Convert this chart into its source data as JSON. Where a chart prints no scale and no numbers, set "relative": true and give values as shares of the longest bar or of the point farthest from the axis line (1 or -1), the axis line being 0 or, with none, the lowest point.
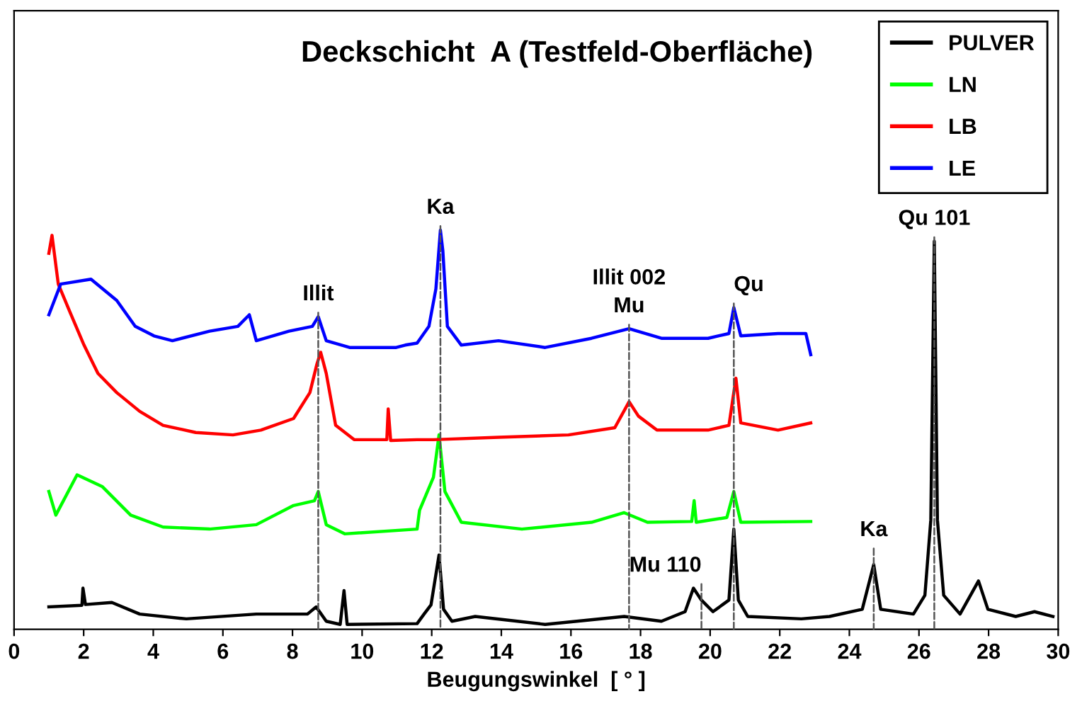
{
  "chart_data": {
    "type": "line",
    "title": "Deckschicht  A (Testfeld-Oberfläche)",
    "xlabel": "Beugungswinkel  [ ° ]",
    "relative": true,
    "xlim": [
      0,
      30
    ],
    "xticks": [
      0,
      2,
      4,
      6,
      8,
      10,
      12,
      14,
      16,
      18,
      20,
      22,
      24,
      26,
      28,
      30
    ],
    "legend": "top right",
    "grid": false,
    "marker": "none",
    "line_style": "solid",
    "series": [
      {
        "name": "PULVER",
        "color": "#000000",
        "x": [
          1.0,
          1.95,
          1.98,
          2.05,
          2.81,
          3.61,
          4.95,
          6.96,
          8.43,
          8.68,
          8.97,
          9.37,
          9.48,
          9.57,
          11.58,
          11.78,
          11.98,
          12.21,
          12.34,
          12.58,
          13.25,
          15.26,
          17.53,
          18.6,
          19.28,
          19.52,
          19.75,
          20.08,
          20.54,
          20.68,
          20.81,
          21.08,
          22.62,
          23.43,
          24.37,
          24.7,
          24.9,
          25.84,
          26.17,
          26.34,
          26.44,
          26.53,
          26.71,
          27.18,
          27.71,
          27.98,
          28.78,
          29.32,
          29.85
        ],
        "values": [
          0.056,
          0.06,
          0.103,
          0.062,
          0.067,
          0.038,
          0.026,
          0.038,
          0.038,
          0.056,
          0.02,
          0.012,
          0.097,
          0.012,
          0.014,
          0.038,
          0.061,
          0.186,
          0.05,
          0.02,
          0.032,
          0.012,
          0.032,
          0.02,
          0.044,
          0.103,
          0.073,
          0.044,
          0.073,
          0.251,
          0.073,
          0.032,
          0.026,
          0.032,
          0.05,
          0.162,
          0.05,
          0.038,
          0.085,
          0.274,
          0.972,
          0.274,
          0.085,
          0.038,
          0.121,
          0.05,
          0.032,
          0.044,
          0.032
        ]
      },
      {
        "name": "LN",
        "color": "#00ff00",
        "x": [
          1.0,
          1.2,
          1.81,
          2.54,
          3.35,
          4.28,
          5.62,
          6.96,
          8.03,
          8.63,
          8.74,
          8.97,
          9.5,
          11.58,
          11.65,
          12.05,
          12.21,
          12.38,
          12.85,
          14.59,
          16.59,
          17.53,
          18.2,
          19.47,
          19.54,
          19.6,
          20.48,
          20.68,
          20.88,
          22.89
        ],
        "values": [
          0.345,
          0.286,
          0.387,
          0.357,
          0.286,
          0.256,
          0.251,
          0.262,
          0.31,
          0.322,
          0.345,
          0.262,
          0.239,
          0.251,
          0.298,
          0.381,
          0.487,
          0.345,
          0.268,
          0.251,
          0.268,
          0.292,
          0.268,
          0.27,
          0.322,
          0.268,
          0.28,
          0.345,
          0.268,
          0.27
        ]
      },
      {
        "name": "LB",
        "color": "#ff0000",
        "x": [
          1.0,
          1.09,
          1.27,
          1.61,
          2.01,
          2.41,
          2.95,
          3.61,
          4.28,
          5.22,
          6.29,
          7.09,
          8.03,
          8.5,
          8.7,
          8.81,
          8.97,
          9.24,
          9.77,
          10.71,
          10.75,
          10.82,
          11.58,
          12.05,
          13.92,
          15.93,
          17.26,
          17.67,
          17.94,
          18.47,
          19.94,
          20.54,
          20.74,
          20.88,
          21.95,
          22.89
        ],
        "values": [
          0.942,
          0.987,
          0.865,
          0.794,
          0.712,
          0.641,
          0.593,
          0.546,
          0.511,
          0.493,
          0.487,
          0.499,
          0.528,
          0.593,
          0.664,
          0.694,
          0.641,
          0.511,
          0.475,
          0.475,
          0.552,
          0.473,
          0.475,
          0.475,
          0.481,
          0.487,
          0.505,
          0.57,
          0.534,
          0.499,
          0.499,
          0.511,
          0.629,
          0.517,
          0.499,
          0.517
        ]
      },
      {
        "name": "LE",
        "color": "#0000ff",
        "x": [
          1.0,
          1.34,
          2.21,
          2.95,
          3.48,
          4.02,
          4.55,
          5.62,
          6.43,
          6.76,
          6.96,
          7.9,
          8.57,
          8.74,
          8.97,
          9.64,
          10.98,
          11.24,
          11.58,
          11.92,
          12.12,
          12.25,
          12.32,
          12.45,
          12.85,
          13.92,
          15.26,
          16.59,
          17.39,
          17.67,
          18.6,
          19.94,
          20.54,
          20.68,
          20.88,
          21.95,
          22.75,
          22.89
        ],
        "values": [
          0.788,
          0.865,
          0.877,
          0.824,
          0.759,
          0.735,
          0.723,
          0.747,
          0.759,
          0.788,
          0.723,
          0.747,
          0.759,
          0.783,
          0.723,
          0.706,
          0.706,
          0.712,
          0.717,
          0.759,
          0.853,
          1,
          0.948,
          0.759,
          0.712,
          0.723,
          0.706,
          0.729,
          0.747,
          0.753,
          0.729,
          0.729,
          0.741,
          0.806,
          0.735,
          0.741,
          0.741,
          0.688
        ]
      }
    ],
    "annotations": [
      {
        "text": "Illit",
        "x": 8.74,
        "y": 0.783
      },
      {
        "text": "Ka",
        "x": 12.25,
        "y": 1
      },
      {
        "text": "Illit 002\nMu",
        "x": 17.67,
        "y": 0.753
      },
      {
        "text": "Mu 110",
        "x": 19.75,
        "y": 0.073
      },
      {
        "text": "Qu",
        "x": 20.68,
        "y": 0.806
      },
      {
        "text": "Ka",
        "x": 24.7,
        "y": 0.162
      },
      {
        "text": "Qu 101",
        "x": 26.44,
        "y": 0.972
      }
    ]
  }
}
